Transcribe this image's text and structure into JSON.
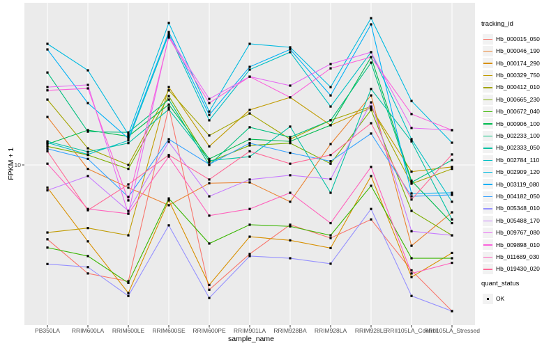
{
  "figure": {
    "background": "#ffffff",
    "panel_background": "#ebebeb",
    "gridline_color": "#ffffff"
  },
  "axes": {
    "x_title": "sample_name",
    "y_title": "FPKM + 1",
    "y_tick_label": "10"
  },
  "legend": {
    "tracking_title": "tracking_id",
    "quant_title": "quant_status",
    "quant_ok_label": "OK",
    "key_background": "#f2f2f2",
    "marker": "black-square"
  },
  "chart_data": {
    "type": "line",
    "title": "",
    "xlabel": "sample_name",
    "ylabel": "FPKM + 1",
    "y_scale": "log10",
    "y_ticks": [
      10
    ],
    "ylim": [
      1,
      115
    ],
    "grid": "major",
    "legend_position": "right",
    "legend_title": "tracking_id",
    "point_marker": "filled-black-square",
    "quant_status": "OK",
    "categories": [
      "PB350LA",
      "RRIM600LA",
      "RRIM600LE",
      "RRIM600SE",
      "RRIM600PE",
      "RRIM901LA",
      "RRIM928BA",
      "RRIM928LA",
      "RRIM928LE",
      "RRII105LA_Control",
      "RRII105LA_Stressed"
    ],
    "series": [
      {
        "name": "Hb_000015_050",
        "color": "#F8766D",
        "values": [
          3.1,
          1.81,
          1.6,
          24.8,
          1.4,
          2.46,
          3.9,
          3.16,
          4.24,
          1.9,
          1.0
        ]
      },
      {
        "name": "Hb_000046_190",
        "color": "#EA8331",
        "values": [
          21.3,
          9.4,
          7.0,
          5.3,
          7.5,
          7.6,
          5.6,
          13.9,
          29.9,
          2.8,
          4.74
        ]
      },
      {
        "name": "Hb_000174_290",
        "color": "#D89000",
        "values": [
          7.0,
          3.0,
          1.33,
          5.72,
          1.51,
          3.23,
          3.05,
          2.7,
          8.4,
          1.71,
          2.5
        ]
      },
      {
        "name": "Hb_000329_750",
        "color": "#C09B00",
        "values": [
          3.45,
          3.7,
          3.3,
          34.1,
          13.4,
          23.8,
          29.0,
          18.7,
          24.6,
          9.0,
          9.7
        ]
      },
      {
        "name": "Hb_000412_010",
        "color": "#A3A500",
        "values": [
          28.0,
          13.0,
          10.0,
          32.4,
          15.9,
          22.5,
          15.0,
          20.2,
          25.1,
          7.44,
          9.4
        ]
      },
      {
        "name": "Hb_000665_230",
        "color": "#7CAE00",
        "values": [
          13.4,
          11.7,
          9.4,
          29.6,
          10.5,
          13.6,
          14.1,
          10.2,
          23.8,
          4.85,
          3.3
        ]
      },
      {
        "name": "Hb_000672_040",
        "color": "#39B600",
        "values": [
          2.72,
          2.38,
          1.56,
          5.9,
          2.9,
          3.9,
          3.8,
          3.3,
          7.2,
          2.3,
          2.3
        ]
      },
      {
        "name": "Hb_000906_100",
        "color": "#00BB4E",
        "values": [
          13.9,
          17.3,
          15.7,
          25.9,
          11.0,
          15.0,
          14.5,
          18.7,
          54.7,
          7.8,
          4.0
        ]
      },
      {
        "name": "Hb_002233_100",
        "color": "#00BF7D",
        "values": [
          42.9,
          16.9,
          16.7,
          28.0,
          10.0,
          18.1,
          15.5,
          20.2,
          50.1,
          7.6,
          10.8
        ]
      },
      {
        "name": "Hb_002333_050",
        "color": "#00C1A3",
        "values": [
          14.5,
          12.3,
          14.1,
          24.0,
          10.7,
          11.4,
          18.3,
          6.45,
          33.1,
          14.5,
          4.24
        ]
      },
      {
        "name": "Hb_002784_110",
        "color": "#00BFC4",
        "values": [
          14.2,
          11.8,
          14.7,
          78.5,
          20.2,
          44.9,
          59.1,
          25.1,
          59.1,
          15.0,
          5.6
        ]
      },
      {
        "name": "Hb_002909_120",
        "color": "#00BAE0",
        "values": [
          67.4,
          44.4,
          16.2,
          93.6,
          23.2,
          67.4,
          63.8,
          34.1,
          101.0,
          27.4,
          14.2
        ]
      },
      {
        "name": "Hb_003119_080",
        "color": "#00B0F6",
        "values": [
          61.7,
          26.5,
          15.2,
          81.2,
          22.0,
          46.9,
          61.7,
          29.9,
          91.6,
          6.38,
          6.45
        ]
      },
      {
        "name": "Hb_004182_050",
        "color": "#35A2FF",
        "values": [
          12.9,
          11.0,
          6.04,
          15.0,
          10.1,
          14.1,
          12.1,
          10.6,
          16.4,
          6.1,
          6.24
        ]
      },
      {
        "name": "Hb_005348_010",
        "color": "#9590FF",
        "values": [
          2.1,
          2.0,
          1.27,
          3.86,
          1.23,
          2.38,
          2.3,
          2.11,
          5.0,
          1.27,
          1.0
        ]
      },
      {
        "name": "Hb_005488_170",
        "color": "#C77CFF",
        "values": [
          6.7,
          8.4,
          4.85,
          14.4,
          6.1,
          7.95,
          8.5,
          8.0,
          26.8,
          3.52,
          3.3
        ]
      },
      {
        "name": "Hb_009767_080",
        "color": "#E76BF3",
        "values": [
          34.1,
          35.3,
          4.64,
          76.0,
          28.3,
          40.2,
          34.9,
          49.0,
          59.1,
          17.9,
          17.3
        ]
      },
      {
        "name": "Hb_009898_010",
        "color": "#FA62DB",
        "values": [
          32.4,
          33.4,
          5.72,
          74.4,
          26.5,
          40.2,
          29.0,
          45.8,
          54.7,
          22.3,
          17.3
        ]
      },
      {
        "name": "Hb_011689_030",
        "color": "#FF62BC",
        "values": [
          10.2,
          5.0,
          4.64,
          11.4,
          4.5,
          5.0,
          6.45,
          4.0,
          9.7,
          1.81,
          2.14
        ]
      },
      {
        "name": "Hb_019430_020",
        "color": "#FF6A98",
        "values": [
          12.4,
          4.9,
          7.36,
          11.7,
          7.95,
          12.4,
          10.2,
          11.7,
          19.3,
          5.8,
          11.8
        ]
      }
    ]
  }
}
